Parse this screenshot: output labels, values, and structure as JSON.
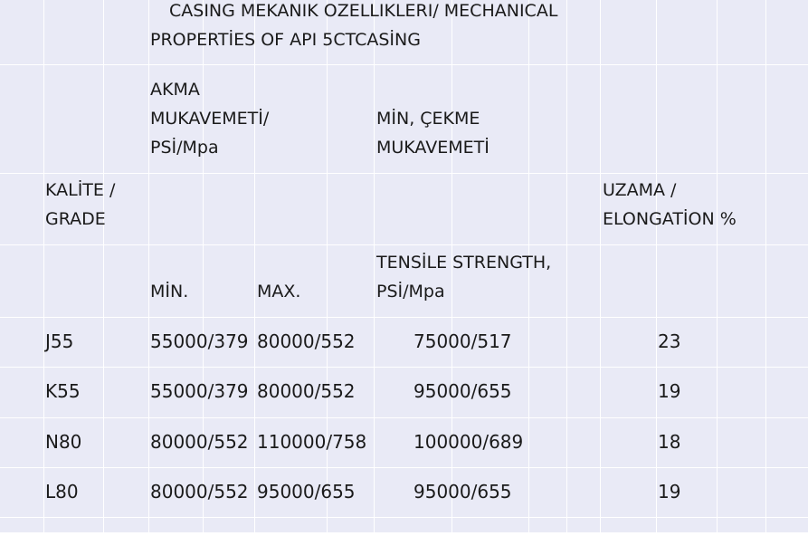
{
  "title": {
    "line1": "CASING MEKANIK OZELLIKLERI/ MECHANICAL",
    "line2": "PROPERTİES OF API 5CTCASİNG"
  },
  "headers": {
    "yield_line1": "AKMA",
    "yield_line2": "MUKAVEMETİ/",
    "yield_line3": "PSİ/Mpa",
    "tensile_line1": "MİN, ÇEKME",
    "tensile_line2": "MUKAVEMETİ",
    "grade_line1": "KALİTE /",
    "grade_line2": "GRADE",
    "elong_line1": "UZAMA /",
    "elong_line2": "ELONGATİON %",
    "min": "MİN.",
    "max": "MAX.",
    "tensile_en_line1": "TENSİLE STRENGTH,",
    "tensile_en_line2": "PSİ/Mpa"
  },
  "rows": [
    {
      "grade": "J55",
      "min": "55000/379",
      "max": "80000/552",
      "tensile": "75000/517",
      "elongation": "23"
    },
    {
      "grade": "K55",
      "min": "55000/379",
      "max": "80000/552",
      "tensile": "95000/655",
      "elongation": "19"
    },
    {
      "grade": "N80",
      "min": "80000/552",
      "max": "110000/758",
      "tensile": "100000/689",
      "elongation": "18"
    },
    {
      "grade": "L80",
      "min": "80000/552",
      "max": "95000/655",
      "tensile": "95000/655",
      "elongation": "19"
    }
  ],
  "colors": {
    "background": "#e9eaf6",
    "grid": "#ffffff",
    "text": "#1a1a1a"
  }
}
